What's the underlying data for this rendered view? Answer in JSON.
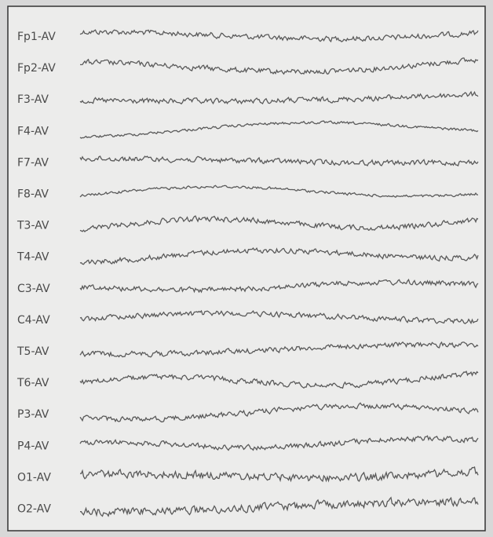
{
  "channels": [
    "Fp1-AV",
    "Fp2-AV",
    "F3-AV",
    "F4-AV",
    "F7-AV",
    "F8-AV",
    "T3-AV",
    "T4-AV",
    "C3-AV",
    "C4-AV",
    "T5-AV",
    "T6-AV",
    "P3-AV",
    "P4-AV",
    "O1-AV",
    "O2-AV"
  ]
}
